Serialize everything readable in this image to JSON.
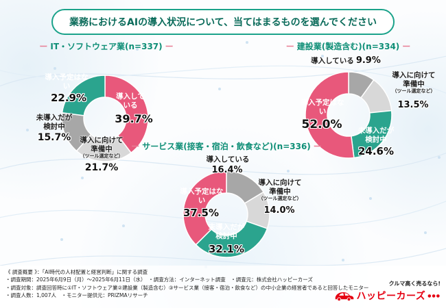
{
  "page": {
    "title": "業務におけるAIの導入状況について、当てはまるものを選んでください"
  },
  "colors": {
    "pink": "#E8587B",
    "teal": "#2BA48E",
    "gray_light": "#D8D8D8",
    "gray_mid": "#A7A7A7",
    "heading_teal": "#0E8E76",
    "dash_pink": "#E87E95",
    "title_text": "#0A6B5A",
    "pill_border": "#1AA28A",
    "logo_red": "#E50012",
    "text_dark": "#222222"
  },
  "chart_data": [
    {
      "type": "pie",
      "donut": true,
      "heading": "IT・ソフトウェア業(n=337)",
      "dash": "ー",
      "n": 337,
      "start_angle_deg": 0,
      "direction": "clockwise",
      "slices": [
        {
          "label": "導入している",
          "value": 39.7,
          "pct": "39.7%",
          "color": "#E8587B"
        },
        {
          "label": "導入に向けて準備中",
          "sublabel": "（ツール選定など）",
          "value": 21.7,
          "pct": "21.7%",
          "color": "#D8D8D8"
        },
        {
          "label": "未導入だが検討中",
          "value": 15.7,
          "pct": "15.7%",
          "color": "#A7A7A7"
        },
        {
          "label": "導入予定はない",
          "value": 22.9,
          "pct": "22.9%",
          "color": "#2BA48E"
        }
      ]
    },
    {
      "type": "pie",
      "donut": true,
      "heading": "建設業(製造含む)(n=334)",
      "dash": "ー",
      "n": 334,
      "start_angle_deg": 0,
      "direction": "clockwise",
      "slices": [
        {
          "label": "導入している",
          "value": 9.9,
          "pct": "9.9%",
          "color": "#A7A7A7"
        },
        {
          "label": "導入に向けて準備中",
          "sublabel": "（ツール選定など）",
          "value": 13.5,
          "pct": "13.5%",
          "color": "#D8D8D8"
        },
        {
          "label": "未導入だが検討中",
          "value": 24.6,
          "pct": "24.6%",
          "color": "#2BA48E"
        },
        {
          "label": "導入予定はない",
          "value": 52.0,
          "pct": "52.0%",
          "color": "#E8587B"
        }
      ]
    },
    {
      "type": "pie",
      "donut": true,
      "heading": "サービス業(接客・宿泊・飲食など)(n=336)",
      "dash": "ー",
      "n": 336,
      "start_angle_deg": 0,
      "direction": "clockwise",
      "slices": [
        {
          "label": "導入している",
          "value": 16.4,
          "pct": "16.4%",
          "color": "#A7A7A7"
        },
        {
          "label": "導入に向けて準備中",
          "sublabel": "（ツール選定など）",
          "value": 14.0,
          "pct": "14.0%",
          "color": "#D8D8D8"
        },
        {
          "label": "未導入だが検討中",
          "value": 32.1,
          "pct": "32.1%",
          "color": "#2BA48E"
        },
        {
          "label": "導入予定はない",
          "value": 37.5,
          "pct": "37.5%",
          "color": "#E8587B"
        }
      ]
    }
  ],
  "footer": {
    "lines": [
      "《 調査概要 》：「AI時代の人材配置と経営判断」に関する調査",
      "・調査期間：2025年6月9日（月）〜2025年6月11日（水）　・調査方法：インターネット調査　・調査元：株式会社ハッピーカーズ",
      "・調査対象：調査回答時に①IT・ソフトウェア業②建設業（製造含む）③サービス業（接客・宿泊・飲食など）の中小企業の経営者であると回答したモニター",
      "・調査人数：1,007人　・モニター提供元：PRIZMAリサーチ"
    ],
    "logo": {
      "tagline": "クルマ高く売るなら!",
      "brand": "ハッピーカーズ",
      "dots": "●●●"
    }
  }
}
